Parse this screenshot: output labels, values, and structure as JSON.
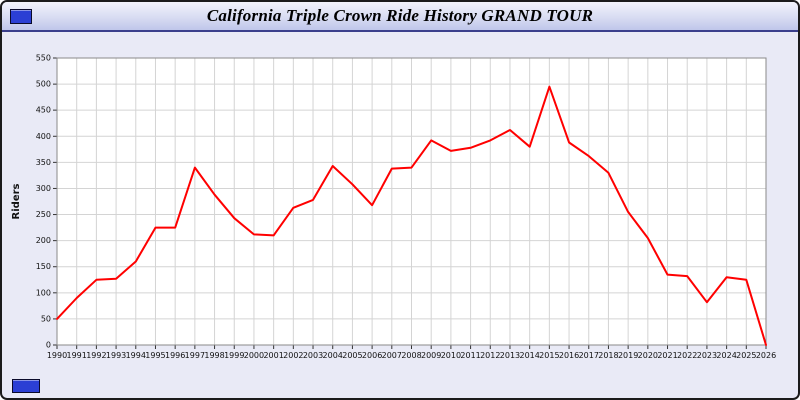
{
  "window": {
    "title": "California Triple Crown Ride History GRAND TOUR"
  },
  "colors": {
    "line": "#ff0000",
    "window_background": "#e9eaf6",
    "plot_background": "#ffffff",
    "grid": "#d4d4d4",
    "corner_widget_blue": "#2b3fd4"
  },
  "chart_data": {
    "type": "line",
    "title": "California Triple Crown Ride History GRAND TOUR",
    "xlabel": "",
    "ylabel": "Riders",
    "ylim": [
      0,
      550
    ],
    "ytick_step": 50,
    "grid": true,
    "legend_position": "none",
    "line_color": "#ff0000",
    "x": [
      1990,
      1991,
      1992,
      1993,
      1994,
      1995,
      1996,
      1997,
      1998,
      1999,
      2000,
      2001,
      2002,
      2003,
      2004,
      2005,
      2006,
      2007,
      2008,
      2009,
      2010,
      2011,
      2012,
      2013,
      2014,
      2015,
      2016,
      2017,
      2018,
      2019,
      2020,
      2021,
      2022,
      2023,
      2024,
      2025,
      2026
    ],
    "series": [
      {
        "name": "Riders",
        "values": [
          50,
          90,
          125,
          127,
          160,
          225,
          225,
          340,
          288,
          243,
          212,
          210,
          263,
          278,
          343,
          308,
          268,
          338,
          340,
          392,
          372,
          378,
          392,
          412,
          380,
          495,
          388,
          362,
          330,
          255,
          205,
          135,
          132,
          82,
          130,
          125,
          0
        ]
      }
    ]
  }
}
